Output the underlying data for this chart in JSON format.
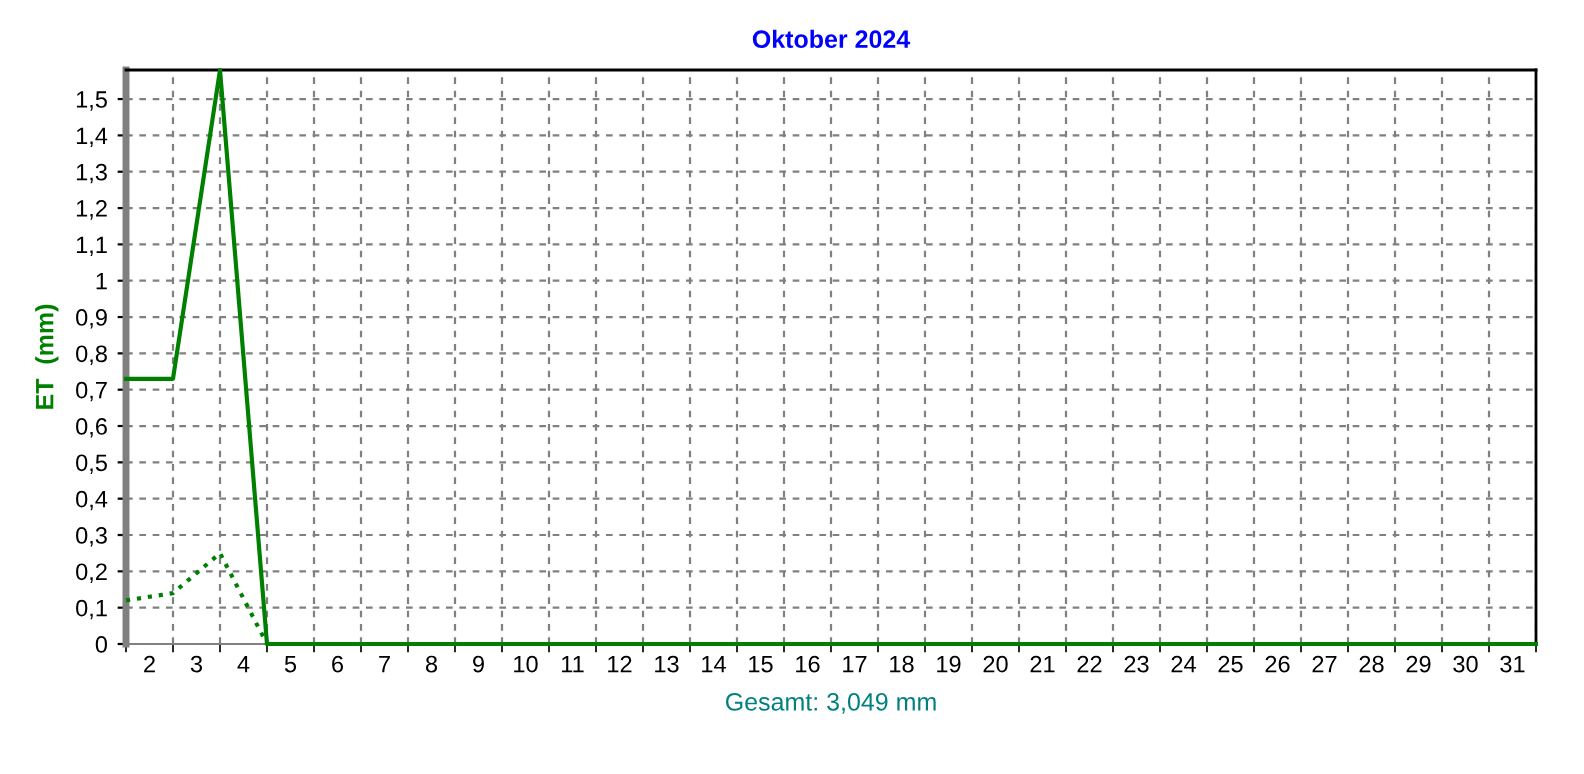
{
  "chart_data": {
    "type": "line",
    "title": "Oktober 2024",
    "ylabel": "ET  (mm)",
    "x": [
      1.5,
      2.5,
      3.5,
      4.5,
      5.5,
      6.5,
      7.5,
      8.5,
      9.5,
      10.5,
      11.5,
      12.5,
      13.5,
      14.5,
      15.5,
      16.5,
      17.5,
      18.5,
      19.5,
      20.5,
      21.5,
      22.5,
      23.5,
      24.5,
      25.5,
      26.5,
      27.5,
      28.5,
      29.5,
      30.5,
      31.5
    ],
    "series": [
      {
        "color": "#008000",
        "line_style": "solid",
        "values": [
          0.73,
          0.73,
          1.58,
          0,
          0,
          0,
          0,
          0,
          0,
          0,
          0,
          0,
          0,
          0,
          0,
          0,
          0,
          0,
          0,
          0,
          0,
          0,
          0,
          0,
          0,
          0,
          0,
          0,
          0,
          0,
          0
        ]
      },
      {
        "color": "#008000",
        "line_style": "dotted",
        "values": [
          0.12,
          0.14,
          0.25,
          0,
          null,
          null,
          null,
          null,
          null,
          null,
          null,
          null,
          null,
          null,
          null,
          null,
          null,
          null,
          null,
          null,
          null,
          null,
          null,
          null,
          null,
          null,
          null,
          null,
          null,
          null,
          null
        ]
      }
    ],
    "xlim": [
      1.5,
      31.5
    ],
    "xticks": [
      2,
      3,
      4,
      5,
      6,
      7,
      8,
      9,
      10,
      11,
      12,
      13,
      14,
      15,
      16,
      17,
      18,
      19,
      20,
      21,
      22,
      23,
      24,
      25,
      26,
      27,
      28,
      29,
      30,
      31
    ],
    "ylim": [
      0,
      1.58
    ],
    "yticks": [
      0,
      {
        "value": 0.1,
        "label": "0,1"
      },
      {
        "value": 0.2,
        "label": "0,2"
      },
      {
        "value": 0.3,
        "label": "0,3"
      },
      {
        "value": 0.4,
        "label": "0,4"
      },
      {
        "value": 0.5,
        "label": "0,5"
      },
      {
        "value": 0.6,
        "label": "0,6"
      },
      {
        "value": 0.7,
        "label": "0,7"
      },
      {
        "value": 0.8,
        "label": "0,8"
      },
      {
        "value": 0.9,
        "label": "0,9"
      },
      1,
      {
        "value": 1.1,
        "label": "1,1"
      },
      {
        "value": 1.2,
        "label": "1,2"
      },
      {
        "value": 1.3,
        "label": "1,3"
      },
      {
        "value": 1.4,
        "label": "1,4"
      },
      {
        "value": 1.5,
        "label": "1,5"
      }
    ],
    "grid": true,
    "annotations": [
      "Gesamt: 3,049 mm"
    ]
  }
}
